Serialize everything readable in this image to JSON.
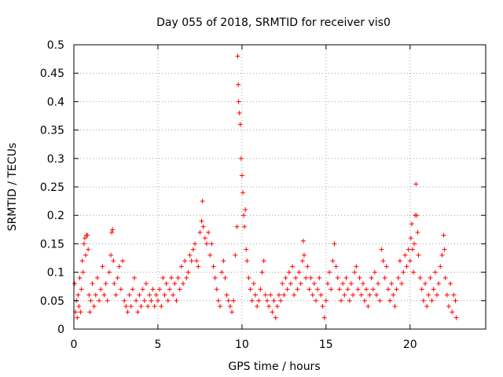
{
  "chart_data": {
    "type": "scatter",
    "title": "Day 055 of 2018, SRMTID for receiver vis0",
    "xlabel": "GPS time / hours",
    "ylabel": "SRMTID / TECUs",
    "xlim": [
      0,
      24.5
    ],
    "ylim": [
      0,
      0.5
    ],
    "x_ticks": [
      0,
      5,
      10,
      15,
      20
    ],
    "x_tick_labels": [
      "0",
      "5",
      "10",
      "15",
      "20"
    ],
    "y_ticks": [
      0,
      0.05,
      0.1,
      0.15,
      0.2,
      0.25,
      0.3,
      0.35,
      0.4,
      0.45,
      0.5
    ],
    "y_tick_labels": [
      "0",
      "0.05",
      "0.1",
      "0.15",
      "0.2",
      "0.25",
      "0.3",
      "0.35",
      "0.4",
      "0.45",
      "0.5"
    ],
    "grid": true,
    "marker": "+",
    "color": "#ff0000",
    "series": [
      {
        "name": "vis0",
        "points": [
          [
            0.05,
            0.08
          ],
          [
            0.1,
            0.03
          ],
          [
            0.15,
            0.05
          ],
          [
            0.2,
            0.02
          ],
          [
            0.25,
            0.06
          ],
          [
            0.3,
            0.04
          ],
          [
            0.35,
            0.09
          ],
          [
            0.4,
            0.03
          ],
          [
            0.45,
            0.07
          ],
          [
            0.5,
            0.12
          ],
          [
            0.55,
            0.1
          ],
          [
            0.6,
            0.15
          ],
          [
            0.65,
            0.16
          ],
          [
            0.7,
            0.13
          ],
          [
            0.75,
            0.165
          ],
          [
            0.8,
            0.165
          ],
          [
            0.85,
            0.14
          ],
          [
            0.9,
            0.06
          ],
          [
            0.95,
            0.03
          ],
          [
            1.0,
            0.05
          ],
          [
            1.1,
            0.08
          ],
          [
            1.2,
            0.04
          ],
          [
            1.3,
            0.06
          ],
          [
            1.4,
            0.09
          ],
          [
            1.5,
            0.05
          ],
          [
            1.6,
            0.07
          ],
          [
            1.7,
            0.11
          ],
          [
            1.8,
            0.06
          ],
          [
            1.9,
            0.08
          ],
          [
            2.0,
            0.05
          ],
          [
            2.1,
            0.1
          ],
          [
            2.2,
            0.13
          ],
          [
            2.25,
            0.17
          ],
          [
            2.3,
            0.175
          ],
          [
            2.35,
            0.12
          ],
          [
            2.4,
            0.08
          ],
          [
            2.5,
            0.06
          ],
          [
            2.6,
            0.09
          ],
          [
            2.7,
            0.11
          ],
          [
            2.8,
            0.07
          ],
          [
            2.9,
            0.12
          ],
          [
            3.0,
            0.05
          ],
          [
            3.1,
            0.04
          ],
          [
            3.2,
            0.03
          ],
          [
            3.3,
            0.06
          ],
          [
            3.4,
            0.04
          ],
          [
            3.5,
            0.07
          ],
          [
            3.6,
            0.09
          ],
          [
            3.7,
            0.05
          ],
          [
            3.8,
            0.03
          ],
          [
            3.9,
            0.06
          ],
          [
            4.0,
            0.04
          ],
          [
            4.1,
            0.07
          ],
          [
            4.2,
            0.05
          ],
          [
            4.3,
            0.08
          ],
          [
            4.4,
            0.04
          ],
          [
            4.5,
            0.06
          ],
          [
            4.6,
            0.05
          ],
          [
            4.7,
            0.07
          ],
          [
            4.8,
            0.04
          ],
          [
            4.9,
            0.06
          ],
          [
            5.0,
            0.05
          ],
          [
            5.1,
            0.07
          ],
          [
            5.2,
            0.04
          ],
          [
            5.3,
            0.09
          ],
          [
            5.4,
            0.06
          ],
          [
            5.5,
            0.08
          ],
          [
            5.6,
            0.05
          ],
          [
            5.7,
            0.07
          ],
          [
            5.8,
            0.09
          ],
          [
            5.9,
            0.06
          ],
          [
            6.0,
            0.08
          ],
          [
            6.1,
            0.05
          ],
          [
            6.2,
            0.09
          ],
          [
            6.3,
            0.07
          ],
          [
            6.4,
            0.11
          ],
          [
            6.5,
            0.08
          ],
          [
            6.6,
            0.12
          ],
          [
            6.7,
            0.09
          ],
          [
            6.8,
            0.1
          ],
          [
            6.9,
            0.13
          ],
          [
            7.0,
            0.12
          ],
          [
            7.1,
            0.14
          ],
          [
            7.2,
            0.15
          ],
          [
            7.3,
            0.12
          ],
          [
            7.4,
            0.11
          ],
          [
            7.5,
            0.17
          ],
          [
            7.6,
            0.19
          ],
          [
            7.65,
            0.225
          ],
          [
            7.7,
            0.18
          ],
          [
            7.8,
            0.16
          ],
          [
            7.9,
            0.15
          ],
          [
            8.0,
            0.17
          ],
          [
            8.1,
            0.13
          ],
          [
            8.2,
            0.15
          ],
          [
            8.3,
            0.11
          ],
          [
            8.4,
            0.09
          ],
          [
            8.5,
            0.07
          ],
          [
            8.6,
            0.05
          ],
          [
            8.7,
            0.04
          ],
          [
            8.8,
            0.1
          ],
          [
            8.9,
            0.12
          ],
          [
            9.0,
            0.09
          ],
          [
            9.1,
            0.06
          ],
          [
            9.2,
            0.05
          ],
          [
            9.3,
            0.04
          ],
          [
            9.4,
            0.03
          ],
          [
            9.5,
            0.05
          ],
          [
            9.6,
            0.13
          ],
          [
            9.7,
            0.18
          ],
          [
            9.75,
            0.48
          ],
          [
            9.78,
            0.43
          ],
          [
            9.8,
            0.4
          ],
          [
            9.85,
            0.38
          ],
          [
            9.9,
            0.36
          ],
          [
            9.95,
            0.3
          ],
          [
            10.0,
            0.27
          ],
          [
            10.05,
            0.24
          ],
          [
            10.1,
            0.2
          ],
          [
            10.15,
            0.18
          ],
          [
            10.2,
            0.21
          ],
          [
            10.25,
            0.14
          ],
          [
            10.3,
            0.12
          ],
          [
            10.4,
            0.09
          ],
          [
            10.5,
            0.07
          ],
          [
            10.6,
            0.05
          ],
          [
            10.7,
            0.08
          ],
          [
            10.8,
            0.06
          ],
          [
            10.9,
            0.04
          ],
          [
            11.0,
            0.05
          ],
          [
            11.1,
            0.07
          ],
          [
            11.2,
            0.1
          ],
          [
            11.3,
            0.12
          ],
          [
            11.4,
            0.06
          ],
          [
            11.5,
            0.05
          ],
          [
            11.6,
            0.04
          ],
          [
            11.7,
            0.06
          ],
          [
            11.8,
            0.03
          ],
          [
            11.9,
            0.05
          ],
          [
            12.0,
            0.02
          ],
          [
            12.1,
            0.04
          ],
          [
            12.2,
            0.06
          ],
          [
            12.3,
            0.05
          ],
          [
            12.4,
            0.08
          ],
          [
            12.5,
            0.06
          ],
          [
            12.6,
            0.09
          ],
          [
            12.7,
            0.07
          ],
          [
            12.8,
            0.1
          ],
          [
            12.9,
            0.08
          ],
          [
            13.0,
            0.11
          ],
          [
            13.1,
            0.06
          ],
          [
            13.2,
            0.09
          ],
          [
            13.3,
            0.07
          ],
          [
            13.4,
            0.1
          ],
          [
            13.5,
            0.08
          ],
          [
            13.6,
            0.12
          ],
          [
            13.65,
            0.155
          ],
          [
            13.7,
            0.13
          ],
          [
            13.8,
            0.09
          ],
          [
            13.9,
            0.11
          ],
          [
            14.0,
            0.07
          ],
          [
            14.1,
            0.09
          ],
          [
            14.2,
            0.06
          ],
          [
            14.3,
            0.08
          ],
          [
            14.4,
            0.05
          ],
          [
            14.5,
            0.07
          ],
          [
            14.6,
            0.09
          ],
          [
            14.7,
            0.06
          ],
          [
            14.8,
            0.04
          ],
          [
            14.9,
            0.02
          ],
          [
            15.0,
            0.05
          ],
          [
            15.1,
            0.08
          ],
          [
            15.2,
            0.1
          ],
          [
            15.3,
            0.07
          ],
          [
            15.4,
            0.12
          ],
          [
            15.5,
            0.15
          ],
          [
            15.6,
            0.11
          ],
          [
            15.7,
            0.09
          ],
          [
            15.8,
            0.07
          ],
          [
            15.9,
            0.05
          ],
          [
            16.0,
            0.08
          ],
          [
            16.1,
            0.06
          ],
          [
            16.2,
            0.09
          ],
          [
            16.3,
            0.07
          ],
          [
            16.4,
            0.05
          ],
          [
            16.5,
            0.08
          ],
          [
            16.6,
            0.06
          ],
          [
            16.7,
            0.1
          ],
          [
            16.8,
            0.11
          ],
          [
            16.9,
            0.07
          ],
          [
            17.0,
            0.09
          ],
          [
            17.1,
            0.06
          ],
          [
            17.2,
            0.08
          ],
          [
            17.3,
            0.05
          ],
          [
            17.4,
            0.07
          ],
          [
            17.5,
            0.04
          ],
          [
            17.6,
            0.06
          ],
          [
            17.7,
            0.09
          ],
          [
            17.8,
            0.07
          ],
          [
            17.9,
            0.1
          ],
          [
            18.0,
            0.06
          ],
          [
            18.1,
            0.08
          ],
          [
            18.2,
            0.05
          ],
          [
            18.3,
            0.14
          ],
          [
            18.4,
            0.12
          ],
          [
            18.5,
            0.09
          ],
          [
            18.6,
            0.11
          ],
          [
            18.7,
            0.07
          ],
          [
            18.8,
            0.05
          ],
          [
            18.9,
            0.08
          ],
          [
            19.0,
            0.06
          ],
          [
            19.1,
            0.04
          ],
          [
            19.2,
            0.07
          ],
          [
            19.3,
            0.09
          ],
          [
            19.4,
            0.12
          ],
          [
            19.5,
            0.08
          ],
          [
            19.6,
            0.1
          ],
          [
            19.7,
            0.13
          ],
          [
            19.8,
            0.11
          ],
          [
            19.9,
            0.14
          ],
          [
            20.0,
            0.12
          ],
          [
            20.05,
            0.16
          ],
          [
            20.1,
            0.185
          ],
          [
            20.15,
            0.14
          ],
          [
            20.2,
            0.1
          ],
          [
            20.25,
            0.15
          ],
          [
            20.3,
            0.2
          ],
          [
            20.35,
            0.255
          ],
          [
            20.4,
            0.2
          ],
          [
            20.45,
            0.17
          ],
          [
            20.5,
            0.13
          ],
          [
            20.6,
            0.09
          ],
          [
            20.7,
            0.07
          ],
          [
            20.8,
            0.05
          ],
          [
            20.9,
            0.08
          ],
          [
            21.0,
            0.04
          ],
          [
            21.1,
            0.06
          ],
          [
            21.2,
            0.09
          ],
          [
            21.3,
            0.05
          ],
          [
            21.4,
            0.07
          ],
          [
            21.5,
            0.1
          ],
          [
            21.6,
            0.06
          ],
          [
            21.7,
            0.08
          ],
          [
            21.8,
            0.11
          ],
          [
            21.9,
            0.13
          ],
          [
            22.0,
            0.165
          ],
          [
            22.05,
            0.14
          ],
          [
            22.1,
            0.09
          ],
          [
            22.2,
            0.06
          ],
          [
            22.3,
            0.04
          ],
          [
            22.4,
            0.08
          ],
          [
            22.5,
            0.03
          ],
          [
            22.6,
            0.06
          ],
          [
            22.7,
            0.05
          ],
          [
            22.75,
            0.02
          ]
        ]
      }
    ]
  }
}
